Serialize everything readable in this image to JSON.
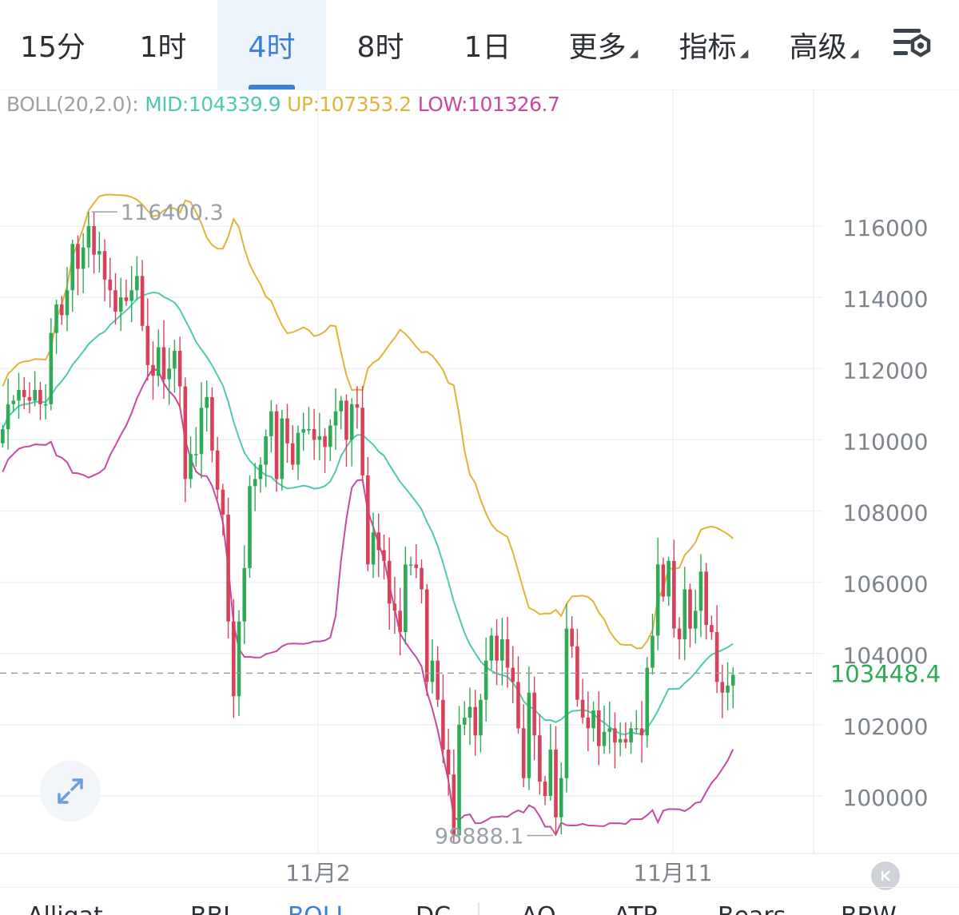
{
  "tabs": [
    {
      "label": "15分",
      "active": false
    },
    {
      "label": "1时",
      "active": false
    },
    {
      "label": "4时",
      "active": true
    },
    {
      "label": "8时",
      "active": false
    },
    {
      "label": "1日",
      "active": false
    },
    {
      "label": "更多",
      "active": false,
      "dropdown": true
    },
    {
      "label": "指标",
      "active": false,
      "dropdown": true
    },
    {
      "label": "高级",
      "active": false,
      "dropdown": true
    }
  ],
  "settings_icon": "chart-settings-icon",
  "indicator": {
    "name": "BOLL(20,2.0):",
    "mid": "MID:104339.9",
    "up": "UP:107353.2",
    "low": "LOW:101326.7",
    "colors": {
      "name": "#9aa0a6",
      "mid": "#4fc9b4",
      "up": "#e0b43a",
      "low": "#c849a3"
    }
  },
  "chart_data": {
    "type": "candlestick",
    "y_ticks": [
      "116000",
      "114000",
      "112000",
      "110000",
      "108000",
      "106000",
      "104000",
      "102000",
      "100000"
    ],
    "y_tick_values": [
      116000,
      114000,
      112000,
      110000,
      108000,
      106000,
      104000,
      102000,
      100000
    ],
    "x_labels": [
      "11月2",
      "11月11"
    ],
    "high_label": "116400.3",
    "low_label": "98888.1",
    "current_price": "103448.4",
    "colors": {
      "up": "#2eaa55",
      "down": "#d9415b",
      "mid": "#4fc9b4",
      "upper": "#e0b43a",
      "lower": "#c849a3",
      "current": "#2eaa55"
    },
    "closes": [
      110300,
      111000,
      111100,
      111400,
      111200,
      111100,
      111400,
      111000,
      111000,
      113000,
      113800,
      113500,
      114200,
      115500,
      114800,
      115400,
      116000,
      115200,
      115300,
      114500,
      114200,
      113600,
      114000,
      113900,
      114200,
      114600,
      113200,
      112100,
      111800,
      112600,
      111700,
      112000,
      112500,
      111500,
      108900,
      109600,
      109600,
      110900,
      111200,
      109700,
      108600,
      107900,
      104900,
      102800,
      104900,
      106400,
      108700,
      108900,
      109300,
      110100,
      110800,
      108900,
      110600,
      109900,
      109300,
      110200,
      110300,
      110300,
      110000,
      110100,
      109800,
      110400,
      110800,
      111100,
      110000,
      111000,
      110900,
      109000,
      106500,
      107400,
      106900,
      106600,
      105400,
      105200,
      104600,
      106500,
      106500,
      106400,
      105800,
      103200,
      103800,
      102700,
      101300,
      100600,
      98900,
      102000,
      102200,
      102500,
      101700,
      102700,
      103800,
      104500,
      103800,
      104400,
      103600,
      103200,
      101900,
      100500,
      102900,
      101700,
      100400,
      100000,
      101300,
      99400,
      100500,
      104700,
      104200,
      102700,
      102200,
      101900,
      102400,
      101400,
      101800,
      101900,
      101500,
      101600,
      101500,
      101900,
      101900,
      101700,
      103600,
      104500,
      106500,
      105600,
      106600,
      104700,
      104400,
      105800,
      104700,
      105200,
      106300,
      104800,
      104600,
      103200,
      102900,
      103100,
      103400
    ]
  },
  "expand_icon": "expand-arrows-icon",
  "scroll_end_icon": "scroll-to-end-icon",
  "indicator_tabs": [
    {
      "label": "Alligat...",
      "active": false
    },
    {
      "label": "BBI",
      "active": false
    },
    {
      "label": "BOLL",
      "active": true
    },
    {
      "label": "DC",
      "active": false
    },
    {
      "label": "AO",
      "active": false
    },
    {
      "label": "ATR",
      "active": false
    },
    {
      "label": "Bears",
      "active": false
    },
    {
      "label": "BBW",
      "active": false
    }
  ]
}
